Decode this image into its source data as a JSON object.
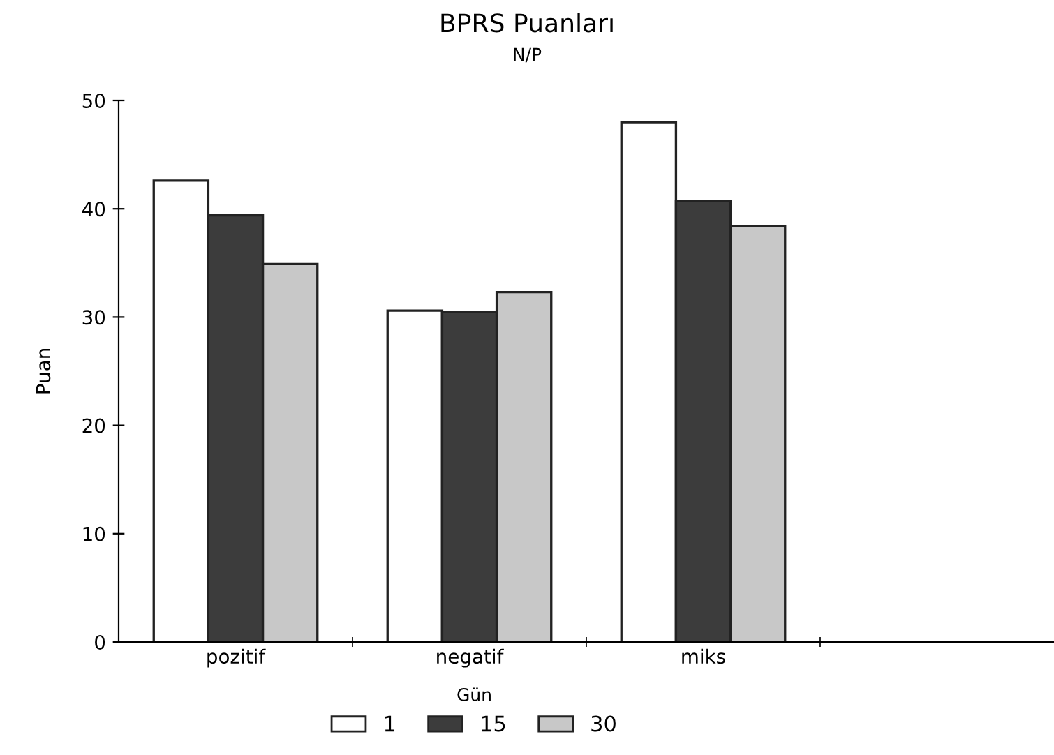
{
  "chart_data": {
    "type": "bar",
    "title": "BPRS Puanları",
    "subtitle": "N/P",
    "ylabel": "Puan",
    "legend_title": "Gün",
    "categories": [
      "pozitif",
      "negatif",
      "miks",
      null
    ],
    "series": [
      {
        "name": "1",
        "color": "#ffffff",
        "values": [
          42.6,
          30.6,
          48.0,
          null
        ]
      },
      {
        "name": "15",
        "color": "#3c3c3c",
        "values": [
          39.4,
          30.5,
          40.7,
          null
        ]
      },
      {
        "name": "30",
        "color": "#c8c8c8",
        "values": [
          34.9,
          32.3,
          38.4,
          null
        ]
      }
    ],
    "ylim": [
      0,
      50
    ],
    "yticks": [
      0,
      10,
      20,
      30,
      40,
      50
    ],
    "grid": false,
    "legend": "bottom"
  }
}
